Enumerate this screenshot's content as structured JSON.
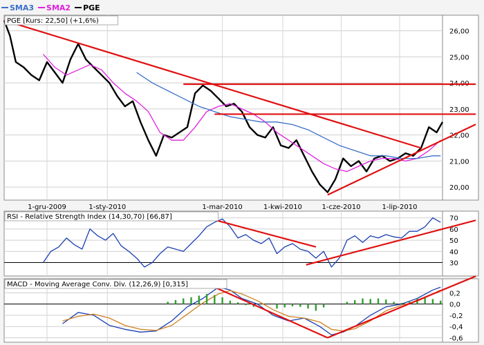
{
  "legend": [
    {
      "name": "SMA3",
      "color": "#3a6fc8"
    },
    {
      "name": "SMA2",
      "color": "#e020e0"
    },
    {
      "name": "PGE",
      "color": "#000000"
    }
  ],
  "chart_data": [
    {
      "type": "line",
      "title": "PGE [Kurs: 22,50] (+1,6%)",
      "ylim": [
        19.5,
        26.6
      ],
      "yticks": [
        20,
        21,
        22,
        23,
        24,
        25,
        26
      ],
      "ytick_labels": [
        "20,00",
        "21,00",
        "22,00",
        "23,00",
        "24,00",
        "25,00",
        "26,00"
      ],
      "xlim": [
        0,
        225
      ],
      "xticks": [
        {
          "x": 22,
          "label": "1-gru-2009"
        },
        {
          "x": 53,
          "label": "1-sty-2010"
        },
        {
          "x": 112,
          "label": "1-mar-2010"
        },
        {
          "x": 143,
          "label": "1-kwi-2010"
        },
        {
          "x": 173,
          "label": "1-cze-2010"
        },
        {
          "x": 203,
          "label": "1-lip-2010"
        }
      ],
      "grid": true,
      "series": [
        {
          "name": "PGE",
          "color": "#000000",
          "x": [
            0,
            3,
            6,
            10,
            14,
            18,
            22,
            26,
            30,
            34,
            38,
            42,
            46,
            50,
            54,
            58,
            62,
            66,
            70,
            74,
            78,
            82,
            86,
            90,
            94,
            98,
            102,
            106,
            110,
            114,
            118,
            122,
            126,
            130,
            134,
            138,
            142,
            146,
            150,
            154,
            158,
            162,
            166,
            170,
            174,
            178,
            182,
            186,
            190,
            194,
            198,
            202,
            206,
            210,
            214,
            218,
            222,
            225
          ],
          "y": [
            26.4,
            25.8,
            24.8,
            24.6,
            24.3,
            24.1,
            24.8,
            24.4,
            24.0,
            24.9,
            25.5,
            24.9,
            24.6,
            24.3,
            24.0,
            23.5,
            23.1,
            23.3,
            22.5,
            21.8,
            21.2,
            22.0,
            21.9,
            22.1,
            22.3,
            23.6,
            23.9,
            23.7,
            23.4,
            23.1,
            23.2,
            22.9,
            22.3,
            22.0,
            21.9,
            22.3,
            21.6,
            21.5,
            21.8,
            21.2,
            20.6,
            20.1,
            19.8,
            20.3,
            21.1,
            20.8,
            21.0,
            20.6,
            21.1,
            21.2,
            21.0,
            21.1,
            21.3,
            21.2,
            21.5,
            22.3,
            22.1,
            22.5
          ]
        },
        {
          "name": "SMA2",
          "color": "#e020e0",
          "x": [
            20,
            26,
            32,
            38,
            44,
            50,
            56,
            62,
            68,
            74,
            80,
            86,
            92,
            98,
            104,
            110,
            116,
            122,
            128,
            134,
            140,
            146,
            152,
            158,
            164,
            170,
            176,
            182,
            188,
            194,
            200,
            206,
            212,
            218,
            224
          ],
          "y": [
            25.1,
            24.6,
            24.3,
            24.5,
            24.7,
            24.5,
            24.0,
            23.6,
            23.3,
            22.9,
            22.1,
            21.8,
            21.8,
            22.3,
            22.9,
            23.1,
            23.2,
            23.0,
            22.8,
            22.5,
            22.1,
            21.8,
            21.5,
            21.2,
            20.9,
            20.7,
            20.6,
            20.8,
            21.0,
            21.1,
            21.1,
            21.0,
            21.1,
            21.4,
            21.8
          ]
        },
        {
          "name": "SMA3",
          "color": "#3a6fc8",
          "x": [
            68,
            76,
            84,
            92,
            100,
            108,
            116,
            124,
            132,
            140,
            148,
            156,
            164,
            172,
            180,
            188,
            196,
            204,
            212,
            220,
            224
          ],
          "y": [
            24.4,
            24.0,
            23.7,
            23.4,
            23.1,
            22.9,
            22.7,
            22.6,
            22.5,
            22.5,
            22.4,
            22.2,
            21.9,
            21.6,
            21.4,
            21.2,
            21.2,
            21.1,
            21.1,
            21.2,
            21.2
          ]
        }
      ]
    },
    {
      "type": "line",
      "title": "RSI - Relative Strength Index (14,30,70) [66,87]",
      "ylim": [
        18,
        76
      ],
      "yticks": [
        30,
        40,
        50,
        60,
        70
      ],
      "ytick_labels": [
        "30",
        "40",
        "50",
        "60",
        "70"
      ],
      "xlim": [
        0,
        225
      ],
      "series": [
        {
          "name": "RSI",
          "color": "#1a3fb0",
          "x": [
            20,
            24,
            28,
            32,
            36,
            40,
            44,
            48,
            52,
            56,
            60,
            64,
            68,
            72,
            76,
            80,
            84,
            88,
            92,
            96,
            100,
            104,
            108,
            112,
            116,
            120,
            124,
            128,
            132,
            136,
            140,
            144,
            148,
            152,
            156,
            160,
            164,
            168,
            172,
            176,
            180,
            184,
            188,
            192,
            196,
            200,
            204,
            208,
            212,
            216,
            220,
            224
          ],
          "y": [
            30,
            40,
            44,
            52,
            46,
            42,
            60,
            54,
            50,
            56,
            45,
            40,
            34,
            26,
            30,
            38,
            44,
            42,
            40,
            47,
            54,
            62,
            66,
            69,
            62,
            52,
            55,
            50,
            47,
            52,
            38,
            44,
            47,
            42,
            40,
            34,
            40,
            26,
            34,
            50,
            54,
            48,
            54,
            52,
            55,
            53,
            52,
            58,
            58,
            62,
            70,
            66
          ]
        }
      ]
    },
    {
      "type": "line",
      "title": "MACD - Moving Average Conv. Div. (12,26,9) [0,315]",
      "ylim": [
        -0.68,
        0.45
      ],
      "yticks": [
        -0.6,
        -0.4,
        -0.2,
        0.0,
        0.2
      ],
      "ytick_labels": [
        "-0,6",
        "-0,4",
        "-0,2",
        "0,0",
        "0,2"
      ],
      "xlim": [
        0,
        225
      ],
      "series": [
        {
          "name": "MACD",
          "color": "#1a3fb0",
          "x": [
            30,
            38,
            46,
            54,
            62,
            70,
            78,
            86,
            94,
            102,
            110,
            116,
            122,
            130,
            138,
            146,
            154,
            162,
            168,
            174,
            180,
            188,
            196,
            204,
            212,
            220,
            224
          ],
          "y": [
            -0.35,
            -0.15,
            -0.2,
            -0.38,
            -0.45,
            -0.5,
            -0.48,
            -0.3,
            -0.05,
            0.1,
            0.3,
            0.25,
            0.1,
            0.0,
            -0.2,
            -0.3,
            -0.25,
            -0.4,
            -0.55,
            -0.5,
            -0.4,
            -0.2,
            -0.05,
            0.0,
            0.1,
            0.25,
            0.3
          ]
        },
        {
          "name": "Signal",
          "color": "#d08020",
          "x": [
            30,
            38,
            46,
            54,
            62,
            70,
            78,
            86,
            94,
            102,
            110,
            116,
            122,
            130,
            138,
            146,
            154,
            162,
            168,
            174,
            180,
            188,
            196,
            204,
            212,
            220,
            224
          ],
          "y": [
            -0.3,
            -0.22,
            -0.18,
            -0.25,
            -0.38,
            -0.45,
            -0.47,
            -0.38,
            -0.18,
            0.02,
            0.18,
            0.24,
            0.18,
            0.06,
            -0.1,
            -0.22,
            -0.25,
            -0.32,
            -0.45,
            -0.48,
            -0.44,
            -0.3,
            -0.12,
            -0.02,
            0.05,
            0.18,
            0.25
          ]
        },
        {
          "name": "Histogram",
          "color": "#2ea02e",
          "type": "bar",
          "x": [
            84,
            88,
            92,
            96,
            100,
            104,
            108,
            112,
            116,
            120,
            124,
            128,
            140,
            144,
            148,
            152,
            156,
            160,
            164,
            176,
            180,
            184,
            188,
            192,
            196,
            200,
            204,
            208,
            212,
            216,
            220,
            224
          ],
          "values": [
            0.04,
            0.07,
            0.1,
            0.12,
            0.15,
            0.18,
            0.16,
            0.12,
            0.06,
            0.03,
            -0.02,
            -0.05,
            -0.08,
            -0.06,
            -0.04,
            -0.05,
            -0.08,
            -0.12,
            -0.06,
            0.04,
            0.07,
            0.1,
            0.09,
            0.1,
            0.08,
            0.04,
            0.02,
            0.05,
            0.1,
            0.12,
            0.09,
            0.06
          ]
        }
      ]
    }
  ],
  "trendlines": {
    "price": [
      {
        "x1": 0,
        "y1": 26.4,
        "x2": 214,
        "y2": 21.5
      },
      {
        "x1": 92,
        "y1": 23.95,
        "x2": 225,
        "y2": 23.95
      },
      {
        "x1": 108,
        "y1": 22.8,
        "x2": 225,
        "y2": 22.8
      },
      {
        "x1": 166,
        "y1": 19.7,
        "x2": 225,
        "y2": 21.8
      }
    ],
    "rsi": [
      {
        "x1": 104,
        "y1": 70,
        "x2": 160,
        "y2": 44
      },
      {
        "x1": 155,
        "y1": 28,
        "x2": 225,
        "y2": 60
      }
    ],
    "macd": [
      {
        "x1": 108,
        "y1": 0.3,
        "x2": 166,
        "y2": -0.6
      },
      {
        "x1": 166,
        "y1": -0.6,
        "x2": 225,
        "y2": 0.25
      }
    ]
  },
  "reference_lines": {
    "rsi": [
      30
    ],
    "macd": [
      0
    ]
  }
}
